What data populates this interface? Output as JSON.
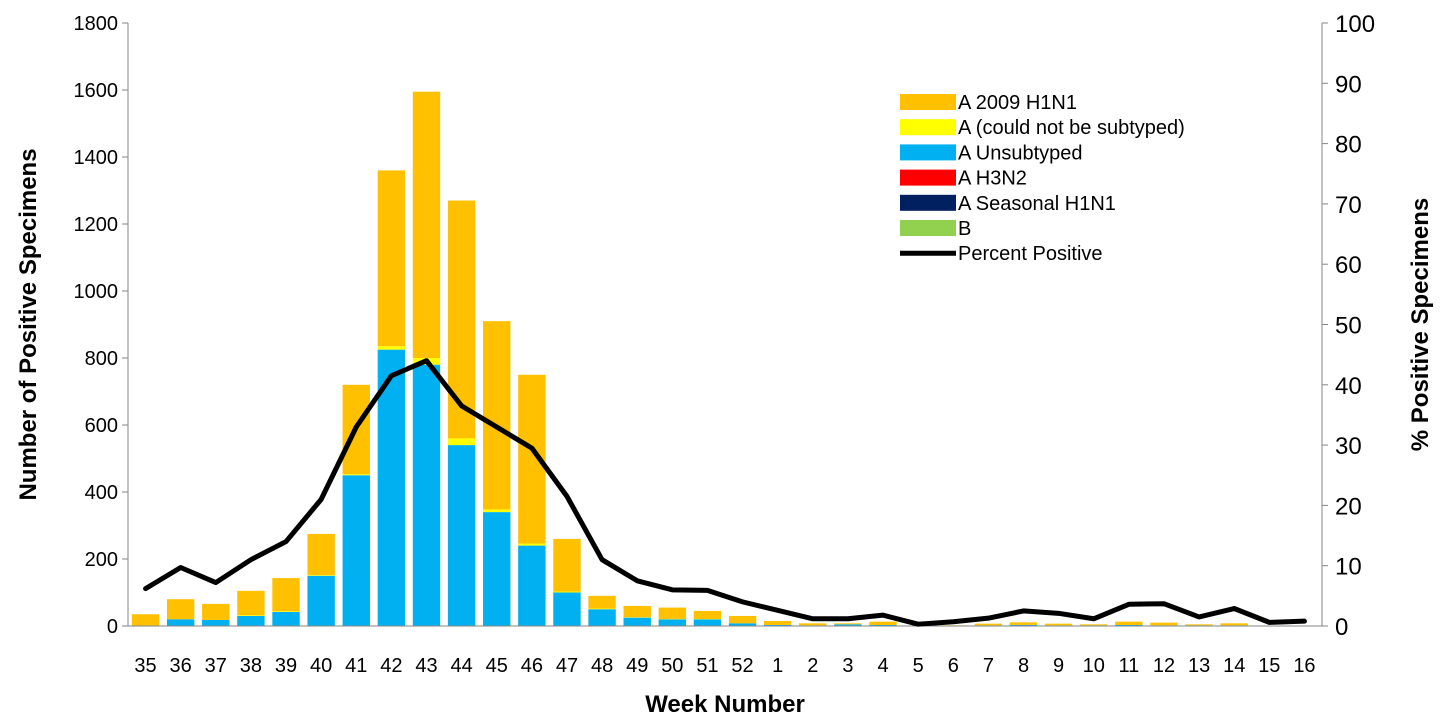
{
  "chart_data": {
    "type": "bar",
    "stacked": true,
    "categories": [
      "35",
      "36",
      "37",
      "38",
      "39",
      "40",
      "41",
      "42",
      "43",
      "44",
      "45",
      "46",
      "47",
      "48",
      "49",
      "50",
      "51",
      "52",
      "1",
      "2",
      "3",
      "4",
      "5",
      "6",
      "7",
      "8",
      "9",
      "10",
      "11",
      "12",
      "13",
      "14",
      "15",
      "16"
    ],
    "xlabel": "Week Number",
    "ylabel": "Number of Positive Specimens",
    "y2label": "% Positive Specimens",
    "ylim": [
      0,
      1800
    ],
    "y2lim": [
      0,
      100
    ],
    "yticks": [
      0,
      200,
      400,
      600,
      800,
      1000,
      1200,
      1400,
      1600,
      1800
    ],
    "y2ticks": [
      0,
      10,
      20,
      30,
      40,
      50,
      60,
      70,
      80,
      90,
      100
    ],
    "grid": false,
    "legend_position": "top-right",
    "series": [
      {
        "name": "B",
        "kind": "bar",
        "color": "#92d050",
        "values": [
          0,
          0,
          0,
          0,
          0,
          0,
          0,
          0,
          0,
          0,
          0,
          0,
          0,
          0,
          0,
          0,
          0,
          0,
          0,
          0,
          0,
          0,
          0,
          0,
          0,
          0,
          0,
          0,
          0,
          0,
          0,
          0,
          0,
          0
        ]
      },
      {
        "name": "A Seasonal H1N1",
        "kind": "bar",
        "color": "#002060",
        "values": [
          0,
          0,
          0,
          0,
          0,
          0,
          0,
          0,
          0,
          0,
          0,
          0,
          0,
          0,
          0,
          0,
          0,
          0,
          0,
          0,
          0,
          0,
          0,
          0,
          0,
          0,
          0,
          0,
          0,
          0,
          0,
          0,
          0,
          0
        ]
      },
      {
        "name": "A H3N2",
        "kind": "bar",
        "color": "#ff0000",
        "values": [
          0,
          0,
          0,
          0,
          0,
          0,
          0,
          0,
          0,
          0,
          0,
          0,
          0,
          0,
          0,
          0,
          0,
          0,
          0,
          0,
          0,
          0,
          0,
          0,
          0,
          0,
          0,
          0,
          0,
          0,
          0,
          0,
          0,
          0
        ]
      },
      {
        "name": "A Unsubtyped",
        "kind": "bar",
        "color": "#00b0f0",
        "values": [
          0,
          20,
          18,
          30,
          42,
          150,
          450,
          825,
          780,
          540,
          340,
          240,
          100,
          50,
          25,
          20,
          20,
          8,
          3,
          2,
          5,
          3,
          0,
          0,
          2,
          3,
          2,
          2,
          3,
          2,
          2,
          2,
          0,
          0
        ]
      },
      {
        "name": "A (could not be subtyped)",
        "kind": "bar",
        "color": "#ffff00",
        "values": [
          0,
          0,
          0,
          2,
          2,
          2,
          3,
          10,
          20,
          20,
          8,
          6,
          3,
          2,
          1,
          1,
          1,
          0,
          0,
          0,
          0,
          0,
          0,
          0,
          0,
          0,
          0,
          0,
          0,
          0,
          0,
          0,
          0,
          0
        ]
      },
      {
        "name": "A 2009 H1N1",
        "kind": "bar",
        "color": "#ffc000",
        "values": [
          35,
          60,
          48,
          73,
          99,
          123,
          267,
          525,
          795,
          710,
          562,
          504,
          157,
          38,
          34,
          34,
          24,
          22,
          12,
          6,
          3,
          10,
          0,
          2,
          5,
          8,
          5,
          3,
          10,
          8,
          3,
          6,
          0,
          0
        ]
      },
      {
        "name": "Percent Positive",
        "kind": "line",
        "axis": "right",
        "color": "#000000",
        "values": [
          6.2,
          9.7,
          7.2,
          11,
          14,
          21,
          33,
          41.5,
          44,
          36.5,
          33,
          29.5,
          21.5,
          11,
          7.5,
          6,
          5.9,
          4,
          2.6,
          1.2,
          1.2,
          1.8,
          0.3,
          0.7,
          1.3,
          2.5,
          2.1,
          1.2,
          3.6,
          3.7,
          1.5,
          2.9,
          0.6,
          0.8
        ]
      }
    ]
  }
}
